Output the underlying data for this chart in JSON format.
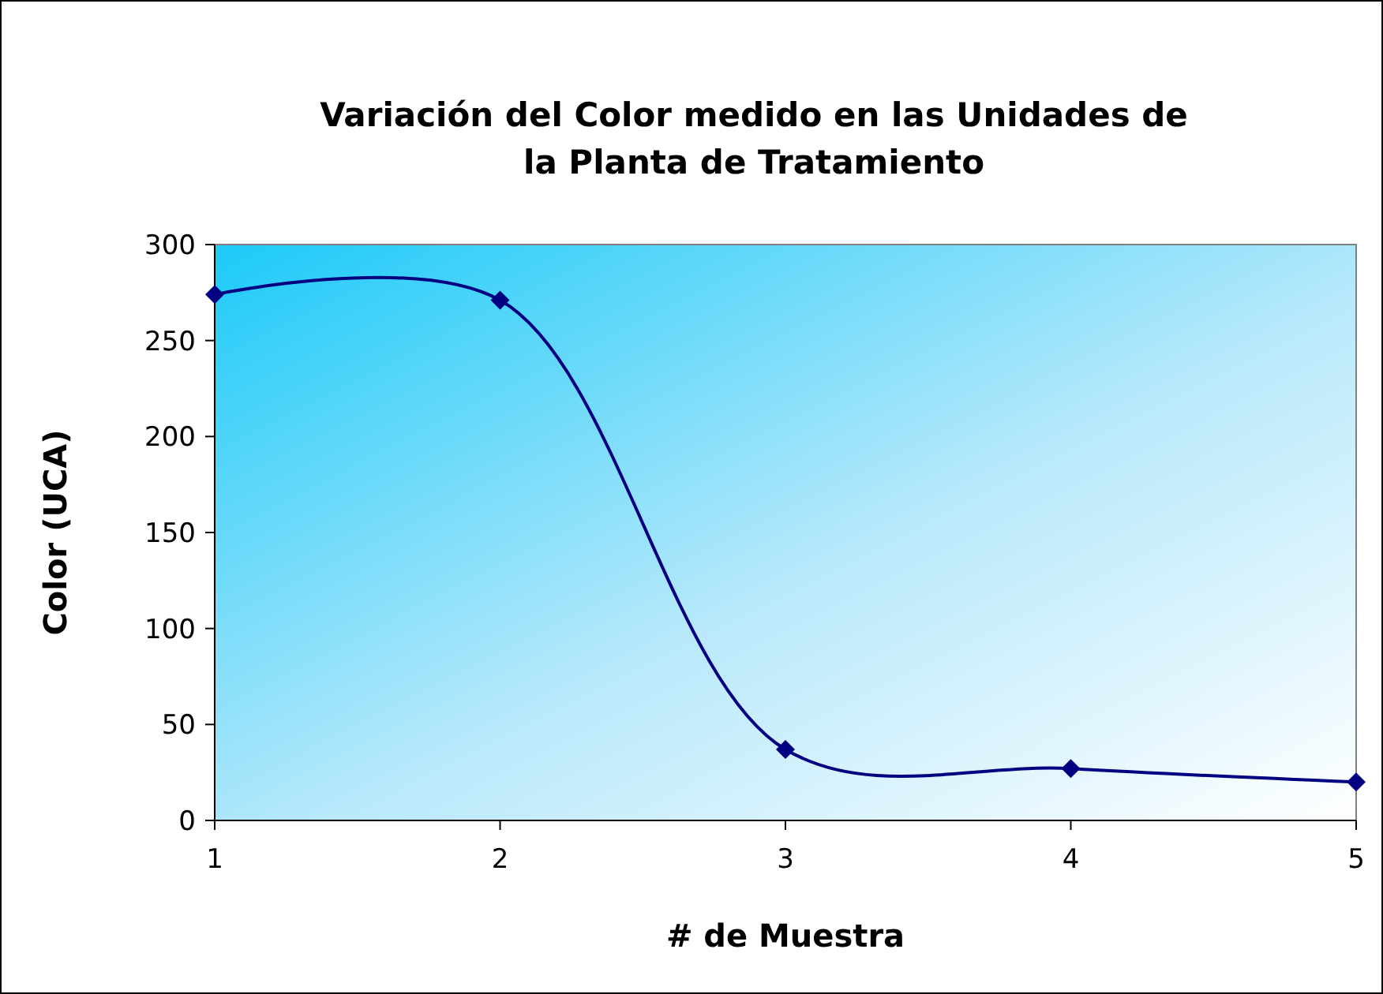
{
  "chart_data": {
    "type": "line",
    "title": "Variación del Color medido en las Unidades de la Planta de Tratamiento",
    "xlabel": "# de Muestra",
    "ylabel": "Color (UCA)",
    "x": [
      1,
      2,
      3,
      4,
      5
    ],
    "series": [
      {
        "color": "#000080",
        "values": [
          274,
          271,
          37,
          27,
          20
        ]
      }
    ],
    "xlim": [
      1,
      5
    ],
    "xticks": [
      1,
      2,
      3,
      4,
      5
    ],
    "ylim": [
      0,
      300
    ],
    "yticks": [
      0,
      50,
      100,
      150,
      200,
      250,
      300
    ],
    "marker": "diamond",
    "line_style": "solid"
  }
}
